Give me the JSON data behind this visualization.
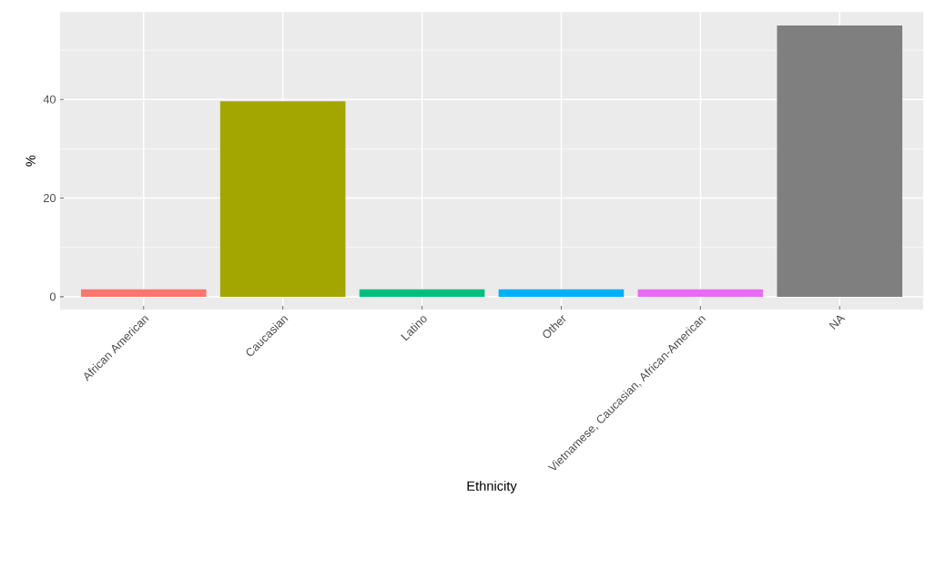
{
  "chart_data": {
    "type": "bar",
    "xlabel": "Ethnicity",
    "ylabel": "%",
    "categories": [
      "African American",
      "Caucasian",
      "Latino",
      "Other",
      "Vietnamese, Caucasian, African-American",
      "NA"
    ],
    "values": [
      1.5,
      39.6,
      1.5,
      1.5,
      1.5,
      55.0
    ],
    "colors": [
      "#f8766d",
      "#a3a500",
      "#00bf7d",
      "#00b0f6",
      "#e76bf3",
      "#7f7f7f"
    ],
    "ylim": [
      -2.6,
      57.7
    ],
    "yticks": [
      0,
      {
        "value": 10,
        "label": null
      },
      20,
      {
        "value": 30,
        "label": null
      },
      40,
      {
        "value": 50,
        "label": null
      }
    ],
    "grid": true
  }
}
